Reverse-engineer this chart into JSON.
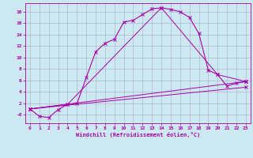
{
  "xlabel": "Windchill (Refroidissement éolien,°C)",
  "bg_color": "#cce8f0",
  "grid_color": "#aaaacc",
  "line_color": "#aa00aa",
  "xlim": [
    -0.5,
    23.5
  ],
  "ylim": [
    -1.5,
    19.5
  ],
  "xticks": [
    0,
    1,
    2,
    3,
    4,
    5,
    6,
    7,
    8,
    9,
    10,
    11,
    12,
    13,
    14,
    15,
    16,
    17,
    18,
    19,
    20,
    21,
    22,
    23
  ],
  "yticks": [
    0,
    2,
    4,
    6,
    8,
    10,
    12,
    14,
    16,
    18
  ],
  "ytick_labels": [
    "-0",
    "2",
    "4",
    "6",
    "8",
    "10",
    "12",
    "14",
    "16",
    "18"
  ],
  "curve1_x": [
    0,
    1,
    2,
    3,
    4,
    5,
    6,
    7,
    8,
    9,
    10,
    11,
    12,
    13,
    14,
    15,
    16,
    17,
    18,
    19,
    20,
    21,
    22,
    23
  ],
  "curve1_y": [
    1.0,
    -0.3,
    -0.5,
    0.9,
    1.8,
    1.9,
    6.5,
    11.0,
    12.5,
    13.2,
    16.2,
    16.5,
    17.5,
    18.5,
    18.7,
    18.4,
    18.0,
    17.0,
    14.2,
    7.8,
    7.0,
    5.0,
    5.5,
    5.8
  ],
  "curve2_x": [
    0,
    4,
    14,
    20,
    23
  ],
  "curve2_y": [
    1.0,
    1.8,
    18.7,
    7.0,
    5.8
  ],
  "curve3_x": [
    0,
    23
  ],
  "curve3_y": [
    1.0,
    5.8
  ],
  "curve4_x": [
    0,
    23
  ],
  "curve4_y": [
    1.0,
    4.8
  ]
}
